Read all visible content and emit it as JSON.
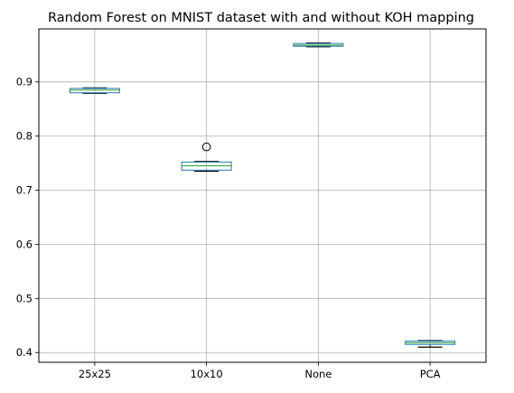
{
  "chart_data": {
    "type": "box",
    "title": "Random Forest on MNIST dataset with and without KOH mapping",
    "xlabel": "",
    "ylabel": "",
    "grid": true,
    "categories": [
      "25x25",
      "10x10",
      "None",
      "PCA"
    ],
    "ylim": [
      0.382,
      0.998
    ],
    "yticks": [
      0.4,
      0.5,
      0.6,
      0.7,
      0.8,
      0.9
    ],
    "ytick_labels": [
      "0.4",
      "0.5",
      "0.6",
      "0.7",
      "0.8",
      "0.9"
    ],
    "boxes": [
      {
        "category": "25x25",
        "whisker_low": 0.879,
        "q1": 0.88,
        "median": 0.885,
        "q3": 0.888,
        "whisker_high": 0.889,
        "outliers": []
      },
      {
        "category": "10x10",
        "whisker_low": 0.735,
        "q1": 0.737,
        "median": 0.745,
        "q3": 0.752,
        "whisker_high": 0.753,
        "outliers": [
          0.78
        ]
      },
      {
        "category": "None",
        "whisker_low": 0.965,
        "q1": 0.966,
        "median": 0.968,
        "q3": 0.971,
        "whisker_high": 0.972,
        "outliers": []
      },
      {
        "category": "PCA",
        "whisker_low": 0.41,
        "q1": 0.415,
        "median": 0.418,
        "q3": 0.421,
        "whisker_high": 0.422,
        "outliers": []
      }
    ],
    "colors": {
      "box": "#1f77b4",
      "median": "#2ca02c",
      "whisker": "#000000",
      "grid": "#b0b0b0"
    }
  }
}
